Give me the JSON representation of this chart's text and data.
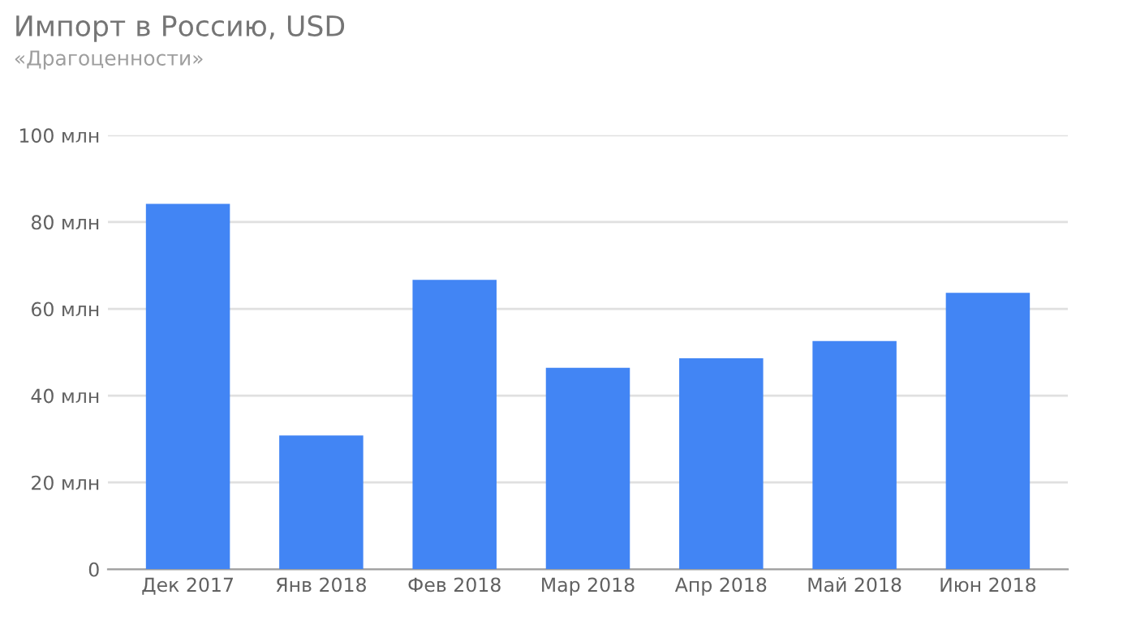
{
  "chart_data": {
    "type": "bar",
    "title": "Импорт в Россию, USD",
    "subtitle": "«Драгоценности»",
    "categories": [
      "Дек 2017",
      "Янв 2018",
      "Фев 2018",
      "Мар 2018",
      "Апр 2018",
      "Май 2018",
      "Июн 2018"
    ],
    "values": [
      84.2,
      30.8,
      66.7,
      46.4,
      48.6,
      52.6,
      63.7
    ],
    "color": "#4285f4",
    "ylim": [
      0,
      100
    ],
    "yticks": [
      0,
      {
        "value": 20,
        "label": "20 млн"
      },
      {
        "value": 40,
        "label": "40 млн"
      },
      {
        "value": 60,
        "label": "60 млн"
      },
      {
        "value": 80,
        "label": "80 млн"
      },
      {
        "value": 100,
        "label": "100 млн"
      }
    ],
    "grid": "y",
    "legend": false
  }
}
